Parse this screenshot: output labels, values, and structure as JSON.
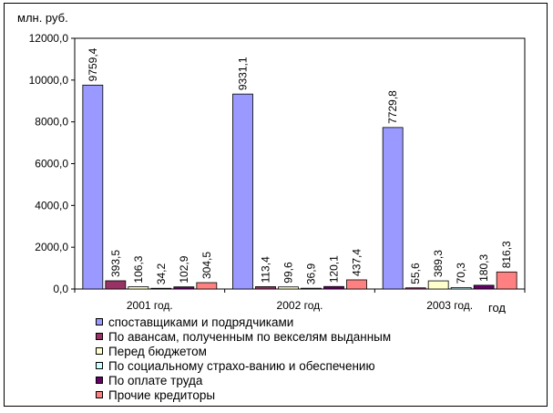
{
  "chart_data": {
    "type": "bar",
    "ylabel": "млн. руб.",
    "xlabel": "год",
    "categories": [
      "2001 год.",
      "2002 год.",
      "2003 год."
    ],
    "ylim": [
      0,
      12000
    ],
    "yticks": [
      "0,0",
      "2000,0",
      "4000,0",
      "6000,0",
      "8000,0",
      "10000,0",
      "12000,0"
    ],
    "grid": false,
    "legend_position": "bottom",
    "series": [
      {
        "name": "споставщиками  и подрядчиками",
        "color": "#9999ff",
        "values": [
          9759.4,
          9331.1,
          7729.8
        ],
        "labels": [
          "9759,4",
          "9331,1",
          "7729,8"
        ]
      },
      {
        "name": "По авансам, полученным по векселям выданным",
        "color": "#993366",
        "values": [
          393.5,
          113.4,
          55.6
        ],
        "labels": [
          "393,5",
          "113,4",
          "55,6"
        ]
      },
      {
        "name": "Перед бюджетом",
        "color": "#ffffcc",
        "values": [
          106.3,
          99.6,
          389.3
        ],
        "labels": [
          "106,3",
          "99,6",
          "389,3"
        ]
      },
      {
        "name": "По социальному страхо-ванию и обеспечению",
        "color": "#ccffff",
        "values": [
          34.2,
          36.9,
          70.3
        ],
        "labels": [
          "34,2",
          "36,9",
          "70,3"
        ]
      },
      {
        "name": "По оплате труда",
        "color": "#660066",
        "values": [
          102.9,
          120.1,
          180.3
        ],
        "labels": [
          "102,9",
          "120,1",
          "180,3"
        ]
      },
      {
        "name": "Прочие кредиторы",
        "color": "#ff8080",
        "values": [
          304.5,
          437.4,
          816.3
        ],
        "labels": [
          "304,5",
          "437,4",
          "816,3"
        ]
      }
    ]
  }
}
